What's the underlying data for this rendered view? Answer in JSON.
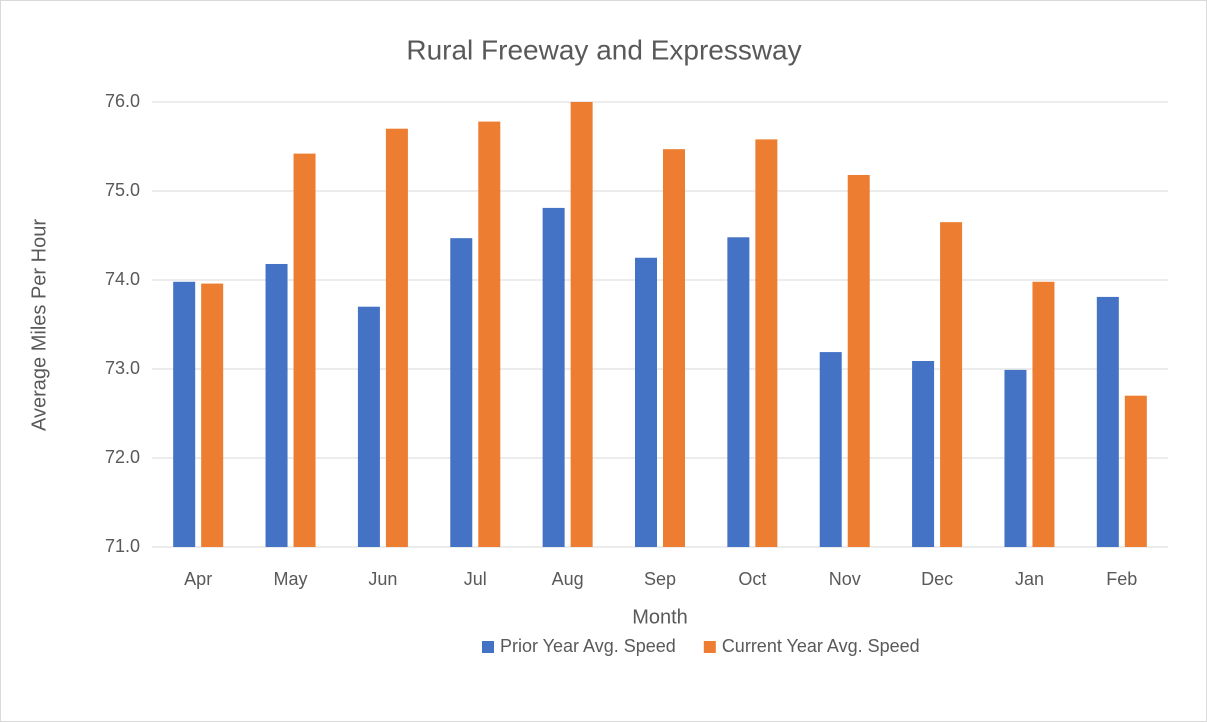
{
  "chart_data": {
    "type": "bar",
    "title": "Rural Freeway and Expressway",
    "x_label": "Month",
    "y_label": "Average Miles Per Hour",
    "categories": [
      "Apr",
      "May",
      "Jun",
      "Jul",
      "Aug",
      "Sep",
      "Oct",
      "Nov",
      "Dec",
      "Jan",
      "Feb"
    ],
    "series": [
      {
        "name": "Prior Year Avg. Speed",
        "color": "#4472c4",
        "values": [
          73.98,
          74.18,
          73.7,
          74.47,
          74.81,
          74.25,
          74.48,
          73.19,
          73.09,
          72.99,
          73.81
        ]
      },
      {
        "name": "Current Year Avg. Speed",
        "color": "#ed7d31",
        "values": [
          73.96,
          75.42,
          75.7,
          75.78,
          76.0,
          75.47,
          75.58,
          75.18,
          74.65,
          73.98,
          72.7
        ]
      }
    ],
    "ylim": [
      71,
      76
    ],
    "yticks": [
      {
        "value": 71,
        "label": "71.0"
      },
      {
        "value": 72,
        "label": "72.0"
      },
      {
        "value": 73,
        "label": "73.0"
      },
      {
        "value": 74,
        "label": "74.0"
      },
      {
        "value": 75,
        "label": "75.0"
      },
      {
        "value": 76,
        "label": "76.0"
      }
    ],
    "grid": true,
    "legend": "bottom"
  }
}
